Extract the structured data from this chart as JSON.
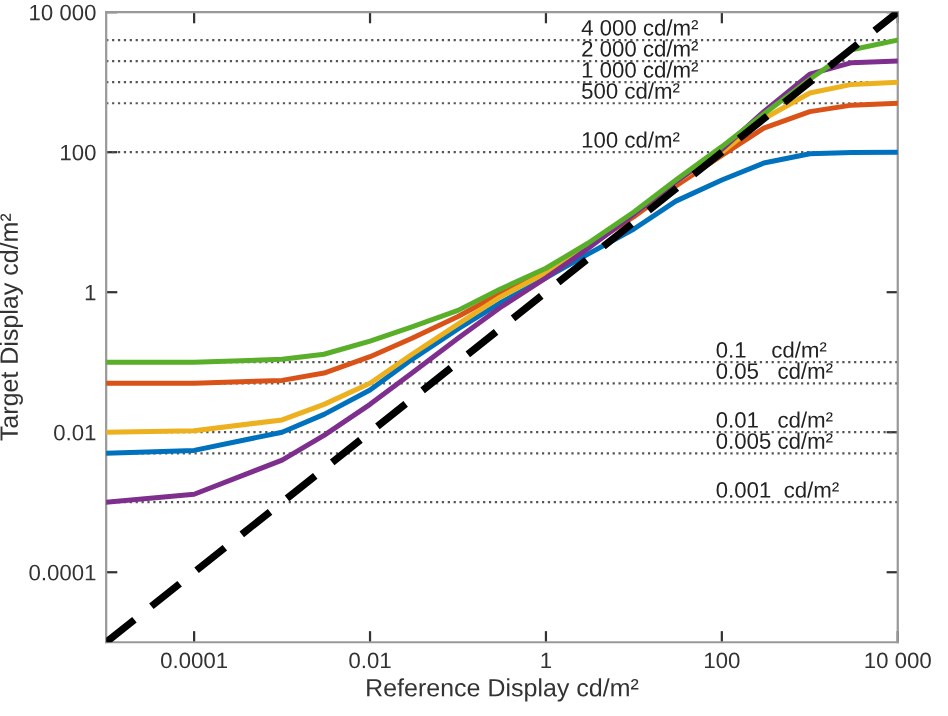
{
  "chart_data": {
    "type": "line",
    "xlabel": "Reference Display cd/m²",
    "ylabel": "Target Display cd/m²",
    "log": "xy",
    "grid": false,
    "marker": "none",
    "x": [
      1e-05,
      0.0001,
      0.001,
      0.003,
      0.01,
      0.03,
      0.1,
      0.3,
      1,
      3,
      10,
      30,
      100,
      300,
      1000,
      3000,
      10000.0
    ],
    "series": [
      {
        "color": "#0072bd",
        "values": [
          0.005,
          0.0055,
          0.01,
          0.018,
          0.04,
          0.11,
          0.3,
          0.7,
          1.6,
          3.5,
          8,
          20,
          40,
          70,
          95,
          99,
          100
        ]
      },
      {
        "color": "#d95319",
        "values": [
          0.05,
          0.05,
          0.055,
          0.07,
          0.12,
          0.22,
          0.45,
          0.95,
          2,
          4.5,
          12,
          33,
          90,
          220,
          380,
          470,
          500
        ]
      },
      {
        "color": "#edb120",
        "values": [
          0.01,
          0.0105,
          0.015,
          0.025,
          0.05,
          0.13,
          0.35,
          0.85,
          1.9,
          4.5,
          13,
          38,
          100,
          300,
          700,
          930,
          1000
        ]
      },
      {
        "color": "#7e2f8e",
        "values": [
          0.001,
          0.0013,
          0.004,
          0.009,
          0.025,
          0.07,
          0.22,
          0.6,
          1.6,
          4.2,
          13,
          38,
          110,
          380,
          1300,
          1900,
          2000
        ]
      },
      {
        "color": "#5aaf2a",
        "values": [
          0.1,
          0.1,
          0.11,
          0.13,
          0.2,
          0.32,
          0.55,
          1.1,
          2.2,
          5,
          14,
          40,
          120,
          350,
          1100,
          2900,
          4000
        ]
      },
      {
        "color": "#000000",
        "line_style": "dashed",
        "x": [
          1e-05,
          10000.0
        ],
        "values": [
          1e-05,
          10000.0
        ]
      }
    ],
    "xlim": [
      1e-05,
      10000.0
    ],
    "ylim": [
      1e-05,
      10000.0
    ],
    "xticks": [
      {
        "value": 0.0001,
        "label": "0.0001"
      },
      0.01,
      1,
      100,
      {
        "value": 10000,
        "label": "10 000"
      }
    ],
    "yticks": [
      {
        "value": 0.0001,
        "label": "0.0001"
      },
      0.01,
      1,
      100,
      {
        "value": 10000,
        "label": "10 000"
      }
    ],
    "ref_lines": [
      {
        "axis": "y",
        "value": 4000,
        "label": "4 000 cd/m²",
        "color": "#555555",
        "line_style": "dotted"
      },
      {
        "axis": "y",
        "value": 2000,
        "label": "2 000 cd/m²",
        "color": "#555555",
        "line_style": "dotted"
      },
      {
        "axis": "y",
        "value": 1000,
        "label": "1 000 cd/m²",
        "color": "#555555",
        "line_style": "dotted"
      },
      {
        "axis": "y",
        "value": 500,
        "label": "500 cd/m²",
        "color": "#555555",
        "line_style": "dotted"
      },
      {
        "axis": "y",
        "value": 100,
        "label": "100 cd/m²",
        "color": "#555555",
        "line_style": "dotted"
      },
      {
        "axis": "y",
        "value": 0.1,
        "label": "0.1    cd/m²",
        "color": "#555555",
        "line_style": "dotted"
      },
      {
        "axis": "y",
        "value": 0.05,
        "label": "0.05   cd/m²",
        "color": "#555555",
        "line_style": "dotted"
      },
      {
        "axis": "y",
        "value": 0.01,
        "label": "0.01   cd/m²",
        "color": "#555555",
        "line_style": "dotted"
      },
      {
        "axis": "y",
        "value": 0.005,
        "label": "0.005 cd/m²",
        "color": "#555555",
        "line_style": "dotted"
      },
      {
        "axis": "y",
        "value": 0.001,
        "label": "0.001  cd/m²",
        "color": "#555555",
        "line_style": "dotted"
      }
    ]
  }
}
